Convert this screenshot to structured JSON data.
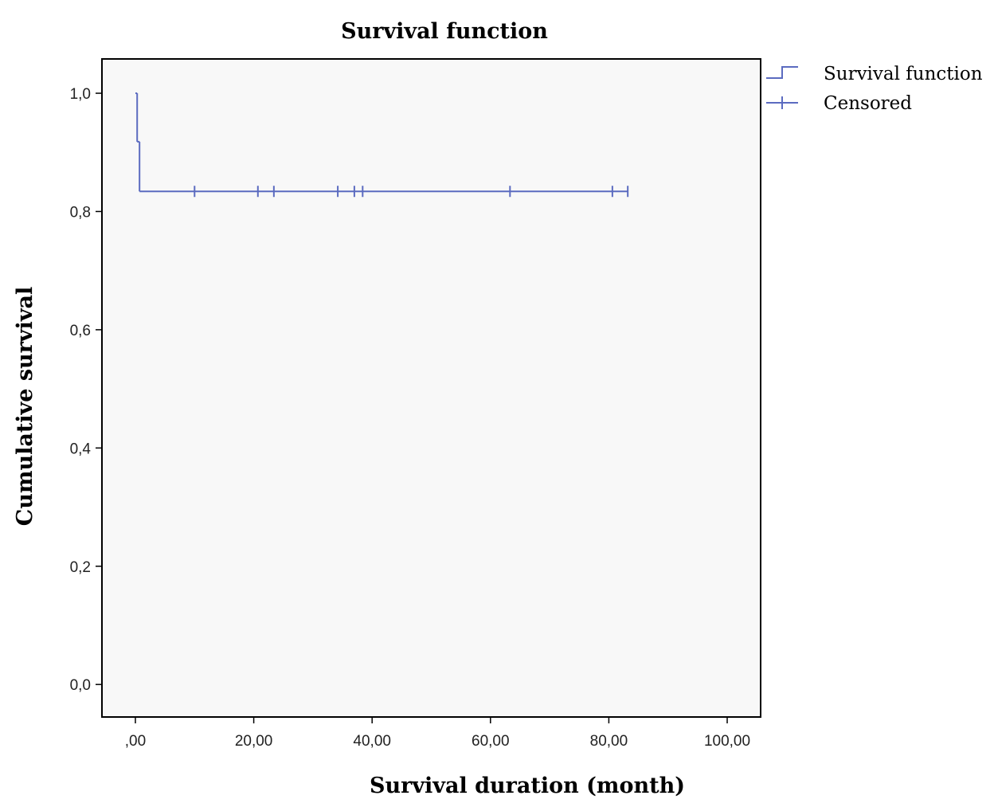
{
  "chart_data": {
    "type": "step",
    "title": "Survival function",
    "x_label": "Survival duration (month)",
    "y_label": "Cumulative survival",
    "xlim": [
      -5.65,
      105.65
    ],
    "ylim": [
      -0.055,
      1.058
    ],
    "xticks": [
      {
        "value": 0,
        "label": ",00"
      },
      {
        "value": 20,
        "label": "20,00"
      },
      {
        "value": 40,
        "label": "40,00"
      },
      {
        "value": 60,
        "label": "60,00"
      },
      {
        "value": 80,
        "label": "80,00"
      },
      {
        "value": 100,
        "label": "100,00"
      }
    ],
    "yticks": [
      {
        "value": 0,
        "label": "0,0"
      },
      {
        "value": 0.2,
        "label": "0,2"
      },
      {
        "value": 0.4,
        "label": "0,4"
      },
      {
        "value": 0.6,
        "label": "0,6"
      },
      {
        "value": 0.8,
        "label": "0,8"
      },
      {
        "value": 1.0,
        "label": "1,0"
      }
    ],
    "grid": false,
    "legend": "right",
    "series": [
      {
        "name": "Survival function",
        "color": "#5b6bc0",
        "x": [
          0,
          0.3,
          0.7,
          83.2
        ],
        "values": [
          1.0,
          0.918,
          0.834,
          0.834
        ]
      },
      {
        "name": "Censored",
        "color": "#5b6bc0",
        "x": [
          10.0,
          20.7,
          23.4,
          34.2,
          37.0,
          38.4,
          63.3,
          80.6,
          83.2
        ],
        "values": [
          0.834,
          0.834,
          0.834,
          0.834,
          0.834,
          0.834,
          0.834,
          0.834,
          0.834
        ]
      }
    ]
  }
}
